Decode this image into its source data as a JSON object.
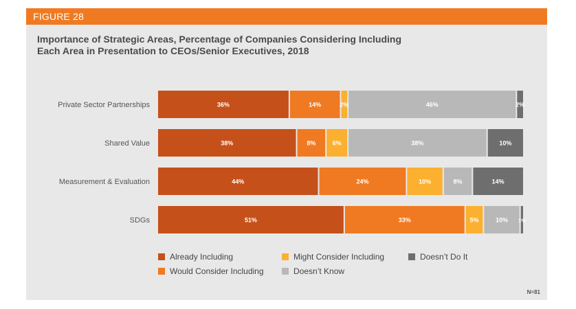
{
  "figure_label": "FIGURE 28",
  "title_line1": "Importance of Strategic Areas, Percentage of Companies Considering Including",
  "title_line2": "Each Area in Presentation to CEOs/Senior Executives, 2018",
  "sample_note": "N=81",
  "colors": {
    "header": "#f07a22",
    "panel": "#e8e8e8",
    "already": "#c65019",
    "would": "#f07a22",
    "might": "#fbb030",
    "dont_know": "#b8b8b8",
    "doesnt_do": "#6e6e6e"
  },
  "chart_data": {
    "type": "bar",
    "orientation": "horizontal",
    "stacked": true,
    "categories": [
      "Private Sector Partnerships",
      "Shared Value",
      "Measurement & Evaluation",
      "SDGs"
    ],
    "series": [
      {
        "name": "Already Including",
        "color": "#c65019",
        "values": [
          36,
          38,
          44,
          51
        ],
        "labels": [
          "36%",
          "38%",
          "44%",
          "51%"
        ]
      },
      {
        "name": "Would Consider Including",
        "color": "#f07a22",
        "values": [
          14,
          8,
          24,
          33
        ],
        "labels": [
          "14%",
          "8%",
          "24%",
          "33%"
        ]
      },
      {
        "name": "Might Consider Including",
        "color": "#fbb030",
        "values": [
          2,
          6,
          10,
          5
        ],
        "labels": [
          "2%",
          "6%",
          "10%",
          "5%"
        ]
      },
      {
        "name": "Doesn't Know",
        "color": "#b8b8b8",
        "values": [
          46,
          38,
          8,
          10
        ],
        "labels": [
          "46%",
          "38%",
          "8%",
          "10%"
        ]
      },
      {
        "name": "Doesn’t Do It",
        "color": "#6e6e6e",
        "values": [
          2,
          10,
          14,
          1
        ],
        "labels": [
          "2%",
          "10%",
          "14%",
          "1%"
        ]
      }
    ],
    "legend": [
      {
        "name": "Already Including",
        "color": "#c65019"
      },
      {
        "name": "Might Consider Including",
        "color": "#fbb030"
      },
      {
        "name": "Doesn’t Do It",
        "color": "#6e6e6e"
      },
      {
        "name": "Would Consider Including",
        "color": "#f07a22"
      },
      {
        "name": "Doesn’t Know",
        "color": "#b8b8b8"
      }
    ],
    "legend_position": "bottom",
    "grid": false
  }
}
